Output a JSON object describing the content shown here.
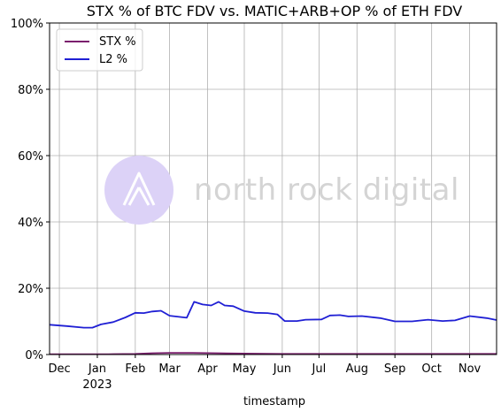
{
  "chart_data": {
    "type": "line",
    "title": "STX % of BTC FDV vs. MATIC+ARB+OP % of ETH FDV",
    "xlabel": "timestamp",
    "ylabel": "",
    "x_range": [
      "2022-11-23",
      "2023-11-23"
    ],
    "ylim": [
      0,
      100
    ],
    "y_ticks": [
      0,
      20,
      40,
      60,
      80,
      100
    ],
    "y_tick_labels": [
      "0%",
      "20%",
      "40%",
      "60%",
      "80%",
      "100%"
    ],
    "x_ticks": [
      {
        "date": "2022-12-01",
        "label": "Dec"
      },
      {
        "date": "2023-01-01",
        "label": "Jan",
        "sublabel": "2023"
      },
      {
        "date": "2023-02-01",
        "label": "Feb"
      },
      {
        "date": "2023-03-01",
        "label": "Mar"
      },
      {
        "date": "2023-04-01",
        "label": "Apr"
      },
      {
        "date": "2023-05-01",
        "label": "May"
      },
      {
        "date": "2023-06-01",
        "label": "Jun"
      },
      {
        "date": "2023-07-01",
        "label": "Jul"
      },
      {
        "date": "2023-08-01",
        "label": "Aug"
      },
      {
        "date": "2023-09-01",
        "label": "Sep"
      },
      {
        "date": "2023-10-01",
        "label": "Oct"
      },
      {
        "date": "2023-11-01",
        "label": "Nov"
      }
    ],
    "grid": true,
    "legend_position": "top-left",
    "series": [
      {
        "name": "STX %",
        "color": "#7b1f6e",
        "points": [
          [
            "2022-11-23",
            0.1
          ],
          [
            "2022-12-15",
            0.1
          ],
          [
            "2023-01-10",
            0.1
          ],
          [
            "2023-02-01",
            0.2
          ],
          [
            "2023-02-15",
            0.4
          ],
          [
            "2023-03-01",
            0.5
          ],
          [
            "2023-03-20",
            0.5
          ],
          [
            "2023-04-10",
            0.4
          ],
          [
            "2023-05-01",
            0.3
          ],
          [
            "2023-06-01",
            0.2
          ],
          [
            "2023-07-01",
            0.2
          ],
          [
            "2023-08-01",
            0.2
          ],
          [
            "2023-09-01",
            0.2
          ],
          [
            "2023-10-01",
            0.2
          ],
          [
            "2023-11-01",
            0.2
          ],
          [
            "2023-11-23",
            0.2
          ]
        ]
      },
      {
        "name": "L2 %",
        "color": "#1f1fd4",
        "points": [
          [
            "2022-11-23",
            9.0
          ],
          [
            "2022-12-07",
            8.6
          ],
          [
            "2022-12-21",
            8.1
          ],
          [
            "2022-12-28",
            8.1
          ],
          [
            "2023-01-04",
            9.1
          ],
          [
            "2023-01-14",
            9.8
          ],
          [
            "2023-01-24",
            11.2
          ],
          [
            "2023-02-01",
            12.6
          ],
          [
            "2023-02-08",
            12.5
          ],
          [
            "2023-02-15",
            13.0
          ],
          [
            "2023-02-22",
            13.2
          ],
          [
            "2023-03-01",
            11.7
          ],
          [
            "2023-03-15",
            11.1
          ],
          [
            "2023-03-21",
            15.9
          ],
          [
            "2023-03-28",
            15.1
          ],
          [
            "2023-04-04",
            14.8
          ],
          [
            "2023-04-10",
            15.9
          ],
          [
            "2023-04-15",
            14.8
          ],
          [
            "2023-04-22",
            14.6
          ],
          [
            "2023-05-01",
            13.1
          ],
          [
            "2023-05-10",
            12.6
          ],
          [
            "2023-05-20",
            12.5
          ],
          [
            "2023-05-28",
            12.1
          ],
          [
            "2023-06-03",
            10.1
          ],
          [
            "2023-06-13",
            10.1
          ],
          [
            "2023-06-20",
            10.5
          ],
          [
            "2023-07-03",
            10.6
          ],
          [
            "2023-07-10",
            11.8
          ],
          [
            "2023-07-18",
            11.9
          ],
          [
            "2023-07-25",
            11.5
          ],
          [
            "2023-08-05",
            11.6
          ],
          [
            "2023-08-20",
            11.0
          ],
          [
            "2023-09-01",
            10.0
          ],
          [
            "2023-09-15",
            10.0
          ],
          [
            "2023-09-28",
            10.5
          ],
          [
            "2023-10-10",
            10.1
          ],
          [
            "2023-10-20",
            10.3
          ],
          [
            "2023-11-01",
            11.6
          ],
          [
            "2023-11-15",
            11.0
          ],
          [
            "2023-11-23",
            10.4
          ]
        ]
      }
    ]
  },
  "watermark": {
    "text": "north rock digital",
    "color": "#d4d4d4",
    "logo_color": "#dcd2f7"
  },
  "legend": {
    "items": [
      {
        "label": "STX %",
        "color": "#7b1f6e"
      },
      {
        "label": "L2 %",
        "color": "#1f1fd4"
      }
    ]
  }
}
